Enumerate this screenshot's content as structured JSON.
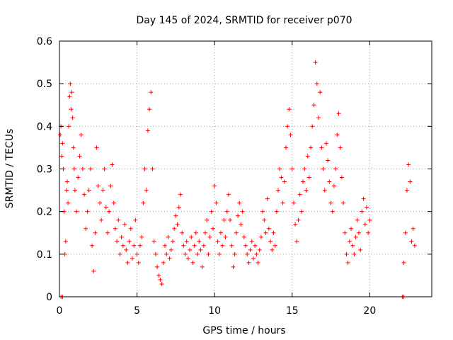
{
  "chart_data": {
    "type": "scatter",
    "title": "Day 145 of 2024, SRMTID for receiver p070",
    "xlabel": "GPS time / hours",
    "ylabel": "SRMTID / TECUs",
    "xlim": [
      0,
      24
    ],
    "ylim": [
      0,
      0.6
    ],
    "x_ticks": [
      0,
      5,
      10,
      15,
      20
    ],
    "x_tick_labels": [
      "0",
      "5",
      "10",
      "15",
      "20"
    ],
    "y_ticks": [
      0,
      0.1,
      0.2,
      0.3,
      0.4,
      0.5,
      0.6
    ],
    "y_tick_labels": [
      "0",
      "0.1",
      "0.2",
      "0.3",
      "0.4",
      "0.5",
      "0.6"
    ],
    "grid": true,
    "marker": "+",
    "color": "#ff0000",
    "series": [
      {
        "name": "SRMTID",
        "points": [
          [
            0.05,
            0.38
          ],
          [
            0.1,
            0.4
          ],
          [
            0.15,
            0.33
          ],
          [
            0.2,
            0.36
          ],
          [
            0.25,
            0.3
          ],
          [
            0.3,
            0.2
          ],
          [
            0.35,
            0.1
          ],
          [
            0.4,
            0.13
          ],
          [
            0.45,
            0.25
          ],
          [
            0.5,
            0.27
          ],
          [
            0.55,
            0.22
          ],
          [
            0.6,
            0.4
          ],
          [
            0.65,
            0.47
          ],
          [
            0.7,
            0.5
          ],
          [
            0.75,
            0.44
          ],
          [
            0.8,
            0.48
          ],
          [
            0.85,
            0.42
          ],
          [
            0.9,
            0.35
          ],
          [
            0.95,
            0.3
          ],
          [
            1.0,
            0.25
          ],
          [
            1.1,
            0.2
          ],
          [
            1.2,
            0.28
          ],
          [
            1.3,
            0.33
          ],
          [
            1.4,
            0.38
          ],
          [
            1.5,
            0.3
          ],
          [
            1.6,
            0.24
          ],
          [
            1.7,
            0.16
          ],
          [
            1.8,
            0.2
          ],
          [
            1.9,
            0.25
          ],
          [
            2.0,
            0.3
          ],
          [
            2.1,
            0.12
          ],
          [
            2.2,
            0.06
          ],
          [
            2.3,
            0.15
          ],
          [
            2.4,
            0.35
          ],
          [
            2.5,
            0.26
          ],
          [
            2.6,
            0.22
          ],
          [
            2.7,
            0.18
          ],
          [
            2.8,
            0.25
          ],
          [
            2.9,
            0.3
          ],
          [
            3.0,
            0.21
          ],
          [
            3.1,
            0.15
          ],
          [
            3.2,
            0.2
          ],
          [
            3.3,
            0.26
          ],
          [
            3.4,
            0.31
          ],
          [
            3.5,
            0.22
          ],
          [
            3.6,
            0.16
          ],
          [
            3.7,
            0.13
          ],
          [
            3.8,
            0.18
          ],
          [
            3.9,
            0.1
          ],
          [
            4.0,
            0.14
          ],
          [
            4.1,
            0.12
          ],
          [
            4.2,
            0.17
          ],
          [
            4.3,
            0.11
          ],
          [
            4.4,
            0.08
          ],
          [
            4.5,
            0.13
          ],
          [
            4.6,
            0.16
          ],
          [
            4.7,
            0.09
          ],
          [
            4.8,
            0.12
          ],
          [
            4.9,
            0.18
          ],
          [
            5.0,
            0.1
          ],
          [
            5.1,
            0.08
          ],
          [
            5.2,
            0.12
          ],
          [
            5.3,
            0.14
          ],
          [
            5.4,
            0.22
          ],
          [
            5.5,
            0.3
          ],
          [
            5.6,
            0.25
          ],
          [
            5.7,
            0.39
          ],
          [
            5.8,
            0.44
          ],
          [
            5.9,
            0.48
          ],
          [
            6.0,
            0.3
          ],
          [
            6.1,
            0.13
          ],
          [
            6.2,
            0.1
          ],
          [
            6.3,
            0.07
          ],
          [
            6.4,
            0.05
          ],
          [
            6.5,
            0.04
          ],
          [
            6.6,
            0.03
          ],
          [
            6.7,
            0.08
          ],
          [
            6.8,
            0.12
          ],
          [
            6.9,
            0.1
          ],
          [
            7.0,
            0.14
          ],
          [
            7.1,
            0.09
          ],
          [
            7.2,
            0.11
          ],
          [
            7.3,
            0.13
          ],
          [
            7.4,
            0.16
          ],
          [
            7.5,
            0.19
          ],
          [
            7.6,
            0.17
          ],
          [
            7.7,
            0.21
          ],
          [
            7.8,
            0.24
          ],
          [
            7.9,
            0.15
          ],
          [
            8.0,
            0.12
          ],
          [
            8.1,
            0.1
          ],
          [
            8.2,
            0.13
          ],
          [
            8.3,
            0.09
          ],
          [
            8.4,
            0.11
          ],
          [
            8.5,
            0.14
          ],
          [
            8.6,
            0.08
          ],
          [
            8.7,
            0.12
          ],
          [
            8.8,
            0.15
          ],
          [
            8.9,
            0.1
          ],
          [
            9.0,
            0.13
          ],
          [
            9.1,
            0.11
          ],
          [
            9.2,
            0.07
          ],
          [
            9.3,
            0.12
          ],
          [
            9.4,
            0.15
          ],
          [
            9.5,
            0.18
          ],
          [
            9.6,
            0.1
          ],
          [
            9.7,
            0.14
          ],
          [
            9.8,
            0.2
          ],
          [
            9.9,
            0.16
          ],
          [
            10.0,
            0.26
          ],
          [
            10.1,
            0.22
          ],
          [
            10.2,
            0.13
          ],
          [
            10.3,
            0.1
          ],
          [
            10.4,
            0.15
          ],
          [
            10.5,
            0.12
          ],
          [
            10.6,
            0.18
          ],
          [
            10.7,
            0.14
          ],
          [
            10.8,
            0.2
          ],
          [
            10.9,
            0.24
          ],
          [
            11.0,
            0.18
          ],
          [
            11.1,
            0.12
          ],
          [
            11.2,
            0.07
          ],
          [
            11.3,
            0.1
          ],
          [
            11.4,
            0.15
          ],
          [
            11.5,
            0.19
          ],
          [
            11.6,
            0.22
          ],
          [
            11.7,
            0.17
          ],
          [
            11.8,
            0.2
          ],
          [
            11.9,
            0.14
          ],
          [
            12.0,
            0.12
          ],
          [
            12.1,
            0.1
          ],
          [
            12.2,
            0.08
          ],
          [
            12.3,
            0.11
          ],
          [
            12.4,
            0.13
          ],
          [
            12.5,
            0.09
          ],
          [
            12.6,
            0.12
          ],
          [
            12.7,
            0.1
          ],
          [
            12.8,
            0.08
          ],
          [
            12.9,
            0.11
          ],
          [
            13.0,
            0.14
          ],
          [
            13.1,
            0.2
          ],
          [
            13.2,
            0.18
          ],
          [
            13.3,
            0.15
          ],
          [
            13.4,
            0.23
          ],
          [
            13.5,
            0.16
          ],
          [
            13.6,
            0.13
          ],
          [
            13.7,
            0.11
          ],
          [
            13.8,
            0.15
          ],
          [
            13.9,
            0.12
          ],
          [
            14.0,
            0.2
          ],
          [
            14.1,
            0.25
          ],
          [
            14.2,
            0.3
          ],
          [
            14.3,
            0.28
          ],
          [
            14.4,
            0.22
          ],
          [
            14.5,
            0.27
          ],
          [
            14.6,
            0.35
          ],
          [
            14.7,
            0.4
          ],
          [
            14.8,
            0.44
          ],
          [
            14.9,
            0.38
          ],
          [
            15.0,
            0.3
          ],
          [
            15.1,
            0.22
          ],
          [
            15.2,
            0.17
          ],
          [
            15.3,
            0.13
          ],
          [
            15.4,
            0.18
          ],
          [
            15.5,
            0.24
          ],
          [
            15.6,
            0.2
          ],
          [
            15.7,
            0.27
          ],
          [
            15.8,
            0.3
          ],
          [
            15.9,
            0.25
          ],
          [
            16.0,
            0.33
          ],
          [
            16.1,
            0.28
          ],
          [
            16.2,
            0.35
          ],
          [
            16.3,
            0.4
          ],
          [
            16.4,
            0.45
          ],
          [
            16.5,
            0.55
          ],
          [
            16.6,
            0.5
          ],
          [
            16.7,
            0.42
          ],
          [
            16.8,
            0.48
          ],
          [
            16.9,
            0.35
          ],
          [
            17.0,
            0.3
          ],
          [
            17.1,
            0.25
          ],
          [
            17.2,
            0.36
          ],
          [
            17.3,
            0.32
          ],
          [
            17.4,
            0.27
          ],
          [
            17.5,
            0.22
          ],
          [
            17.6,
            0.2
          ],
          [
            17.7,
            0.26
          ],
          [
            17.8,
            0.3
          ],
          [
            17.9,
            0.38
          ],
          [
            18.0,
            0.43
          ],
          [
            18.1,
            0.35
          ],
          [
            18.2,
            0.28
          ],
          [
            18.3,
            0.22
          ],
          [
            18.4,
            0.15
          ],
          [
            18.5,
            0.1
          ],
          [
            18.6,
            0.08
          ],
          [
            18.7,
            0.13
          ],
          [
            18.8,
            0.16
          ],
          [
            18.9,
            0.12
          ],
          [
            19.0,
            0.1
          ],
          [
            19.1,
            0.14
          ],
          [
            19.2,
            0.18
          ],
          [
            19.3,
            0.15
          ],
          [
            19.4,
            0.11
          ],
          [
            19.5,
            0.2
          ],
          [
            19.6,
            0.23
          ],
          [
            19.7,
            0.17
          ],
          [
            19.8,
            0.21
          ],
          [
            19.9,
            0.15
          ],
          [
            20.0,
            0.18
          ],
          [
            22.2,
            0.08
          ],
          [
            22.3,
            0.15
          ],
          [
            22.4,
            0.25
          ],
          [
            22.5,
            0.31
          ],
          [
            22.6,
            0.27
          ],
          [
            22.7,
            0.13
          ],
          [
            22.8,
            0.16
          ],
          [
            22.9,
            0.12
          ]
        ],
        "zero_points": [
          [
            0.1,
            0.0
          ],
          [
            0.2,
            0.0
          ],
          [
            22.1,
            0.0
          ],
          [
            22.2,
            0.0
          ]
        ]
      }
    ]
  }
}
